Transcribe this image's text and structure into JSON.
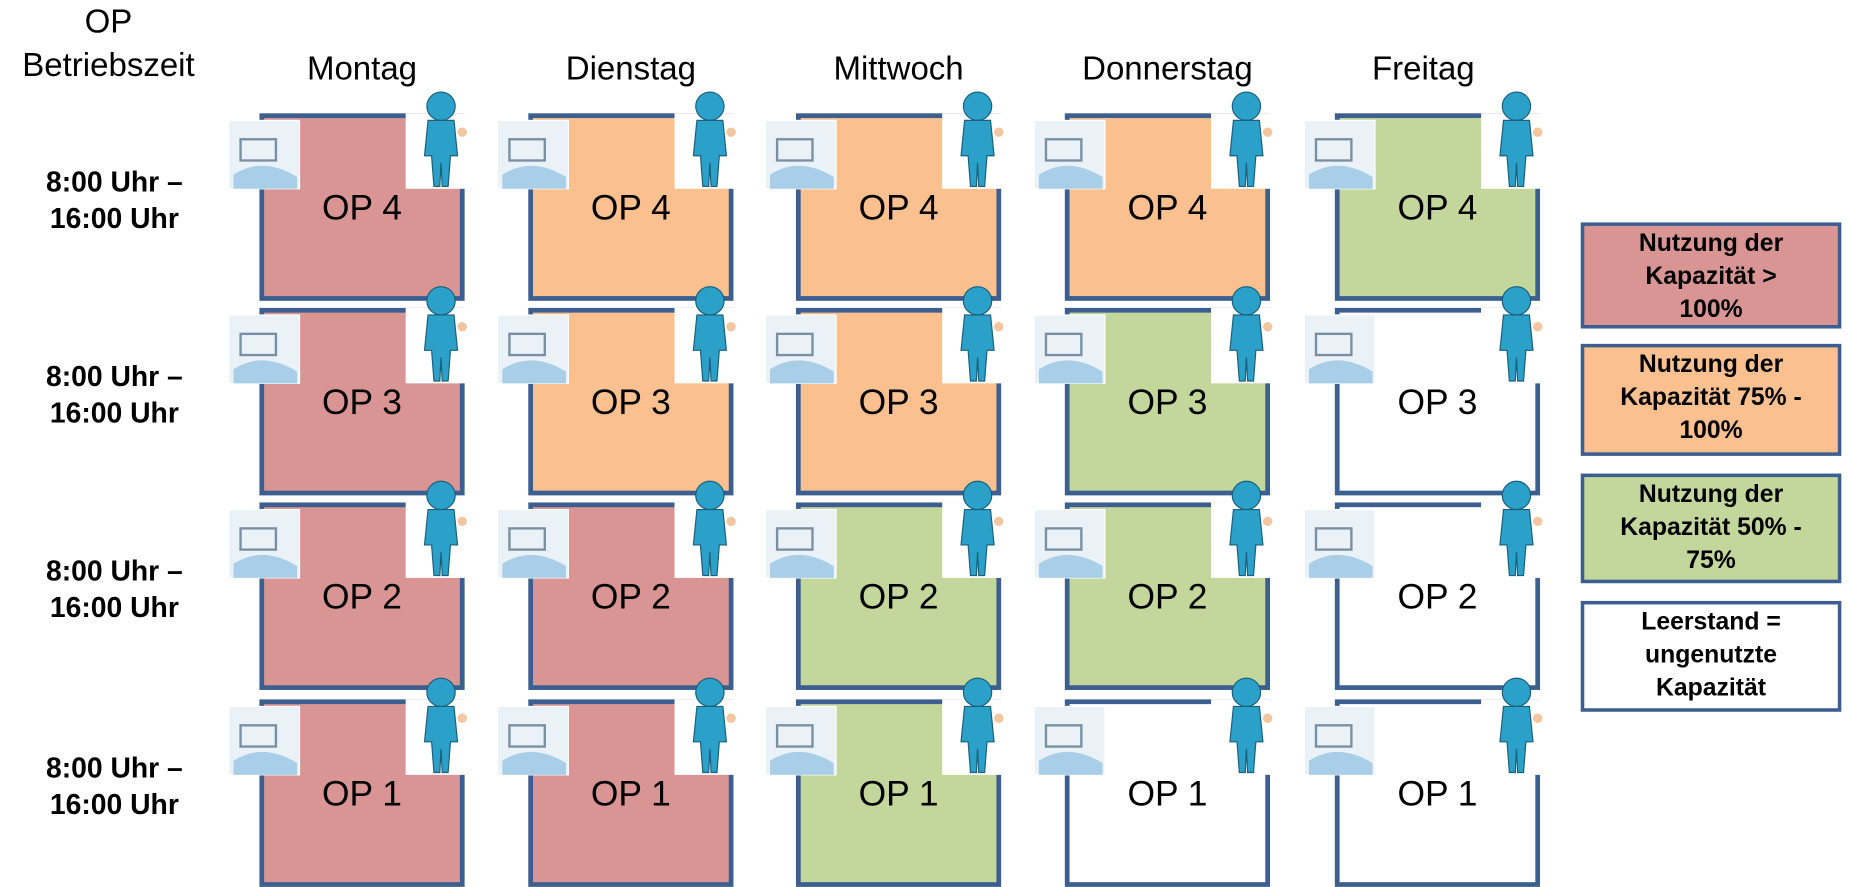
{
  "header": {
    "lines": [
      "OP",
      "Betriebszeit"
    ]
  },
  "days": [
    "Montag",
    "Dienstag",
    "Mittwoch",
    "Donnerstag",
    "Freitag"
  ],
  "rows": [
    {
      "time": [
        "8:00 Uhr –",
        "16:00 Uhr"
      ],
      "cells": [
        {
          "label": "OP 4",
          "level": 0
        },
        {
          "label": "OP 4",
          "level": 1
        },
        {
          "label": "OP 4",
          "level": 1
        },
        {
          "label": "OP 4",
          "level": 1
        },
        {
          "label": "OP 4",
          "level": 2
        }
      ]
    },
    {
      "time": [
        "8:00 Uhr –",
        "16:00 Uhr"
      ],
      "cells": [
        {
          "label": "OP 3",
          "level": 0
        },
        {
          "label": "OP 3",
          "level": 1
        },
        {
          "label": "OP 3",
          "level": 1
        },
        {
          "label": "OP 3",
          "level": 2
        },
        {
          "label": "OP 3",
          "level": 3
        }
      ]
    },
    {
      "time": [
        "8:00 Uhr –",
        "16:00 Uhr"
      ],
      "cells": [
        {
          "label": "OP 2",
          "level": 0
        },
        {
          "label": "OP 2",
          "level": 0
        },
        {
          "label": "OP 2",
          "level": 2
        },
        {
          "label": "OP 2",
          "level": 2
        },
        {
          "label": "OP 2",
          "level": 3
        }
      ]
    },
    {
      "time": [
        "8:00 Uhr –",
        "16:00 Uhr"
      ],
      "cells": [
        {
          "label": "OP 1",
          "level": 0
        },
        {
          "label": "OP 1",
          "level": 0
        },
        {
          "label": "OP 1",
          "level": 2
        },
        {
          "label": "OP 1",
          "level": 3
        },
        {
          "label": "OP 1",
          "level": 3
        }
      ]
    }
  ],
  "legend": [
    {
      "color": "#d99594",
      "lines": [
        "Nutzung der",
        "Kapazität >",
        "100%"
      ]
    },
    {
      "color": "#fac090",
      "lines": [
        "Nutzung der",
        "Kapazität 75% -",
        "100%"
      ]
    },
    {
      "color": "#c3d69b",
      "lines": [
        "Nutzung der",
        "Kapazität 50% -",
        "75%"
      ]
    },
    {
      "color": "#ffffff",
      "lines": [
        "Leerstand =",
        "ungenutzte",
        "Kapazität"
      ]
    }
  ]
}
